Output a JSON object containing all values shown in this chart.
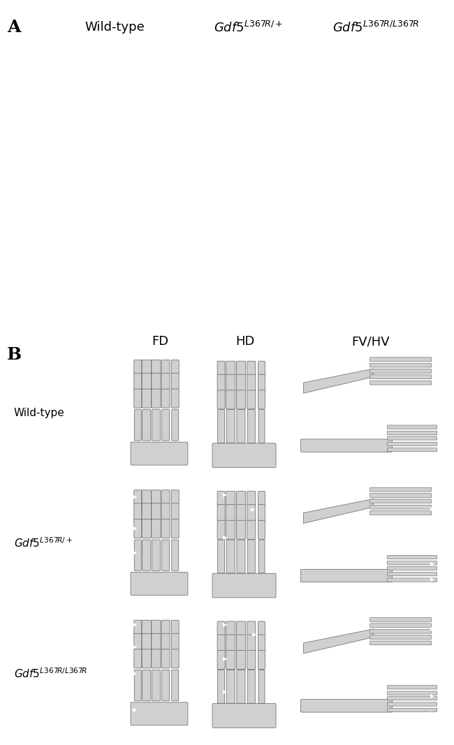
{
  "panel_A_label": "A",
  "panel_B_label": "B",
  "col_labels_A": [
    "Wild-type",
    "Gdf5^{L367R/+}",
    "Gdf5^{L367R/L367R}"
  ],
  "col_labels_B": [
    "FD",
    "HD",
    "FV/HV"
  ],
  "row_labels_B": [
    "Wild-type",
    "Gdf5^{L367R/+}",
    "Gdf5^{L367R/L367R}"
  ],
  "fig_bg": "#ffffff",
  "label_fontsize": 18,
  "col_label_fontsize": 13,
  "row_label_fontsize": 11,
  "photo_colors_top": [
    "#6a6a6a",
    "#b8a070",
    "#c0a878"
  ],
  "photo_colors_bot": [
    "#504840",
    "#987858",
    "#b09068"
  ],
  "ct_bg": "#000000"
}
